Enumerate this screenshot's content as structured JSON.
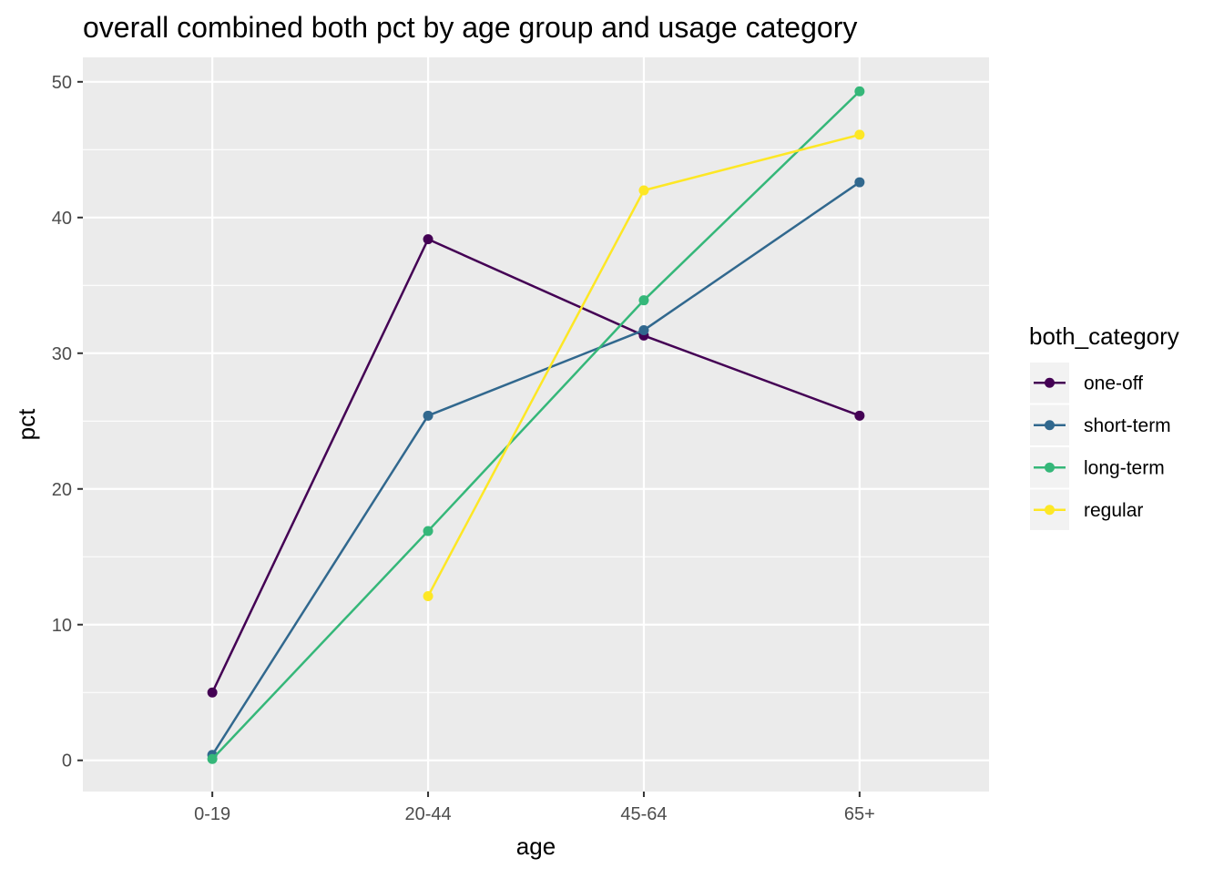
{
  "chart_data": {
    "type": "line",
    "title": "overall combined both pct by age group and usage category",
    "xlabel": "age",
    "ylabel": "pct",
    "categories": [
      "0-19",
      "20-44",
      "45-64",
      "65+"
    ],
    "ylim": [
      -2.3,
      51.8
    ],
    "yticks": [
      0,
      10,
      20,
      30,
      40,
      50
    ],
    "grid": true,
    "legend": {
      "title": "both_category",
      "position": "right"
    },
    "series": [
      {
        "name": "one-off",
        "color": "#440154",
        "values": [
          5.0,
          38.4,
          31.3,
          25.4
        ]
      },
      {
        "name": "short-term",
        "color": "#31688E",
        "values": [
          0.4,
          25.4,
          31.7,
          42.6
        ]
      },
      {
        "name": "long-term",
        "color": "#35B779",
        "values": [
          0.1,
          16.9,
          33.9,
          49.3
        ]
      },
      {
        "name": "regular",
        "color": "#FDE725",
        "values": [
          null,
          12.1,
          42.0,
          46.1
        ]
      }
    ]
  }
}
